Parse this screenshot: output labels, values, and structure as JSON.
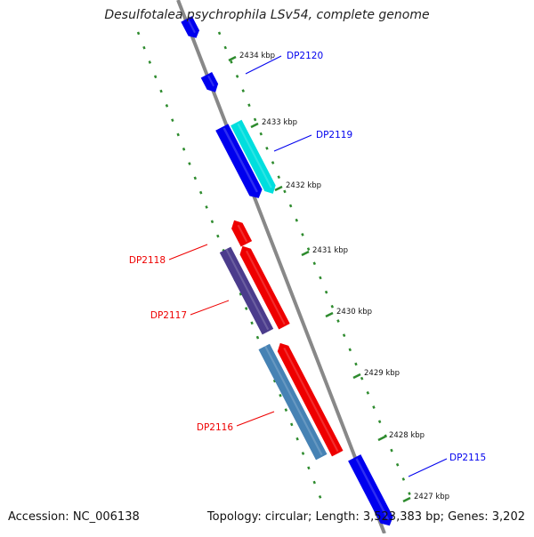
{
  "title": "Desulfotalea psychrophila LSv54, complete genome",
  "footer": {
    "accession": "Accession: NC_006138",
    "summary": "Topology: circular; Length: 3,523,383 bp; Genes: 3,202"
  },
  "colors": {
    "backbone": "#888888",
    "tick": "#2e8b2e",
    "forward_gene": "#0000ee",
    "reverse_gene": "#ee0000",
    "cyan_gene": "#00dede",
    "purple_gene": "#4b3c8c",
    "steel_gene": "#4682b4"
  },
  "kbp_labels": [
    "2434 kbp",
    "2433 kbp",
    "2432 kbp",
    "2431 kbp",
    "2430 kbp",
    "2429 kbp",
    "2428 kbp",
    "2427 kbp"
  ],
  "gene_labels": [
    {
      "text": "DP2120",
      "strand": "forward"
    },
    {
      "text": "DP2119",
      "strand": "forward"
    },
    {
      "text": "DP2118",
      "strand": "reverse"
    },
    {
      "text": "DP2117",
      "strand": "reverse"
    },
    {
      "text": "DP2116",
      "strand": "reverse"
    },
    {
      "text": "DP2115",
      "strand": "forward"
    }
  ]
}
